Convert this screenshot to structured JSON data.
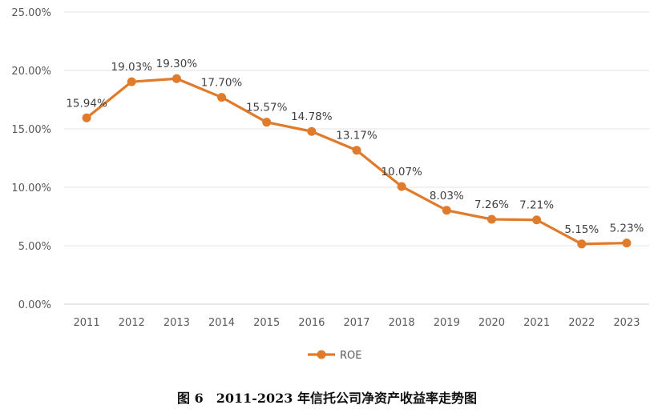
{
  "caption": "图 6　2011-2023 年信托公司净资产收益率走势图",
  "chart_data": {
    "type": "line",
    "title": "",
    "xlabel": "",
    "ylabel": "",
    "ylim": [
      0,
      25
    ],
    "yticks": [
      "0.00%",
      "5.00%",
      "10.00%",
      "15.00%",
      "20.00%",
      "25.00%"
    ],
    "grid": true,
    "legend_position": "bottom",
    "categories": [
      "2011",
      "2012",
      "2013",
      "2014",
      "2015",
      "2016",
      "2017",
      "2018",
      "2019",
      "2020",
      "2021",
      "2022",
      "2023"
    ],
    "series": [
      {
        "name": "ROE",
        "color": "#e07b2c",
        "values": [
          15.94,
          19.03,
          19.3,
          17.7,
          15.57,
          14.78,
          13.17,
          10.07,
          8.03,
          7.26,
          7.21,
          5.15,
          5.23
        ],
        "labels": [
          "15.94%",
          "19.03%",
          "19.30%",
          "17.70%",
          "15.57%",
          "14.78%",
          "13.17%",
          "10.07%",
          "8.03%",
          "7.26%",
          "7.21%",
          "5.15%",
          "5.23%"
        ]
      }
    ]
  }
}
